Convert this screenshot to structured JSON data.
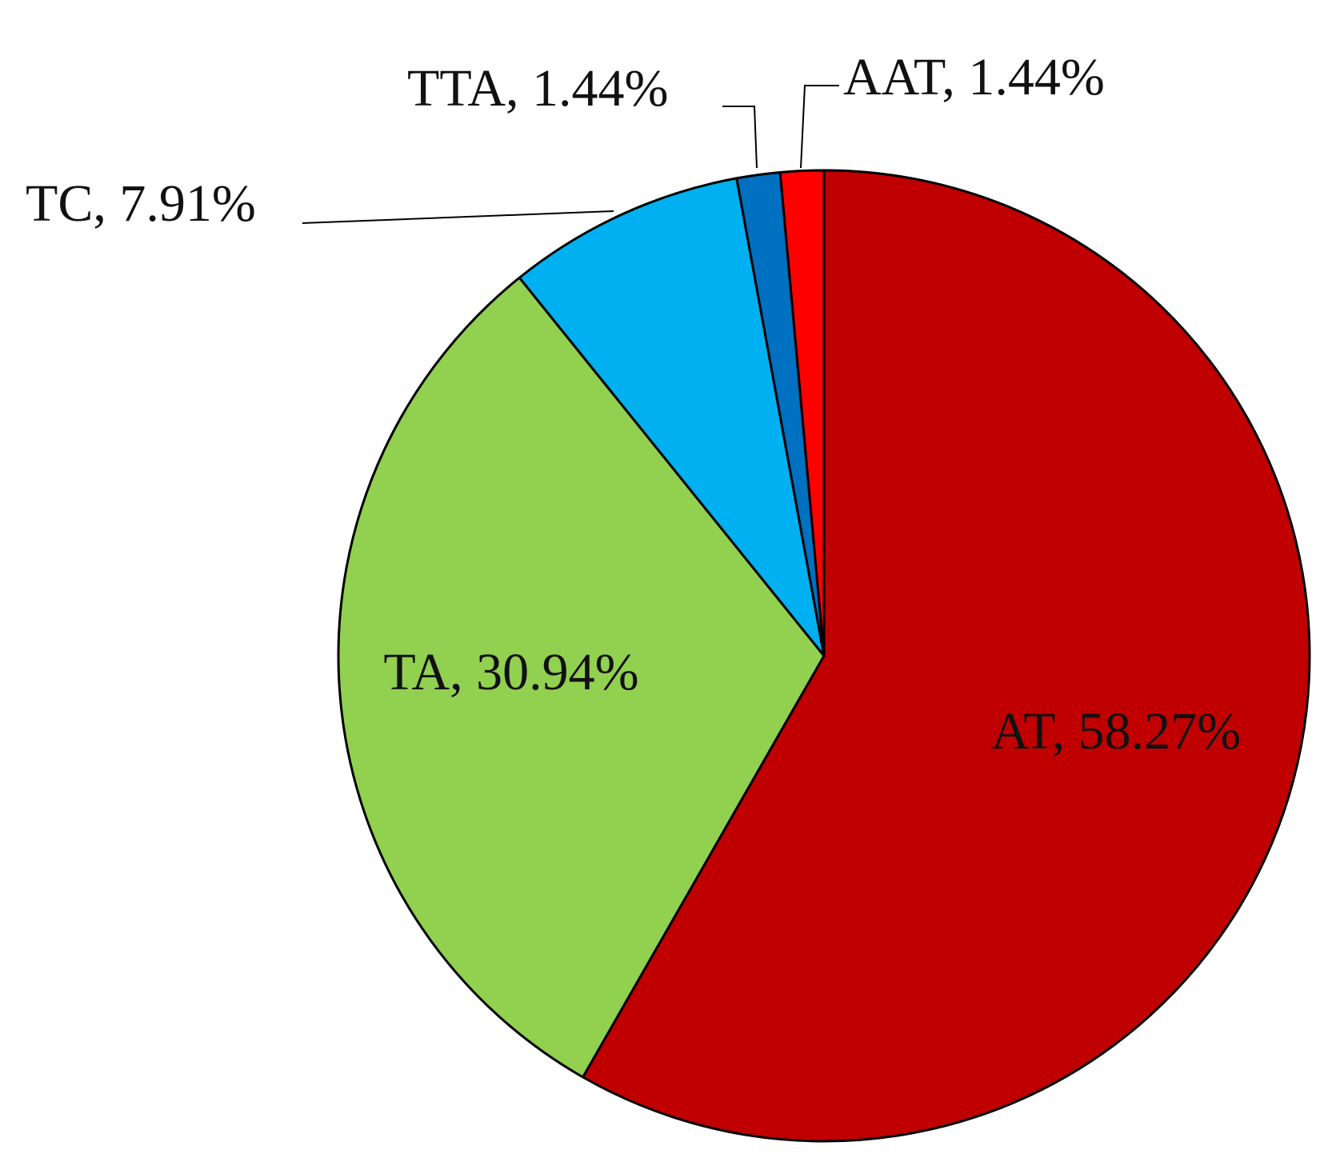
{
  "chart_data": {
    "type": "pie",
    "values": [
      58.27,
      30.94,
      7.91,
      1.44,
      1.44
    ],
    "value_labels": [
      "AT, 58.27%",
      "TA, 30.94%",
      "TC, 7.91%",
      "TTA, 1.44%",
      "AAT, 1.44%"
    ],
    "colors": [
      "#c00000",
      "#92d050",
      "#00b0f0",
      "#0070c0",
      "#ff0000"
    ]
  }
}
